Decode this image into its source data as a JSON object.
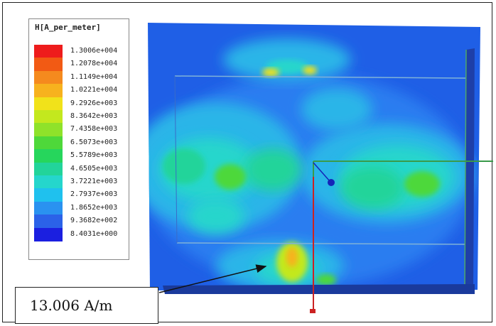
{
  "legend": {
    "title": "H[A_per_meter]",
    "entries": [
      {
        "label": "1.3006e+004",
        "color": "#ee1c1c"
      },
      {
        "label": "1.2078e+004",
        "color": "#f25a14"
      },
      {
        "label": "1.1149e+004",
        "color": "#f58a1e"
      },
      {
        "label": "1.0221e+004",
        "color": "#f7b21e"
      },
      {
        "label": "9.2926e+003",
        "color": "#f1e21a"
      },
      {
        "label": "8.3642e+003",
        "color": "#c3e81e"
      },
      {
        "label": "7.4358e+003",
        "color": "#8fe22a"
      },
      {
        "label": "6.5073e+003",
        "color": "#4ed83a"
      },
      {
        "label": "5.5789e+003",
        "color": "#26d65c"
      },
      {
        "label": "4.6505e+003",
        "color": "#22d49a"
      },
      {
        "label": "3.7221e+003",
        "color": "#25d6cc"
      },
      {
        "label": "2.7937e+003",
        "color": "#1fc1ee"
      },
      {
        "label": "1.8652e+003",
        "color": "#2a92f0"
      },
      {
        "label": "9.3682e+002",
        "color": "#2b62e8"
      },
      {
        "label": "8.4031e+000",
        "color": "#1b1fe0"
      }
    ]
  },
  "annotation": {
    "text": "13.006 A/m"
  },
  "colors": {
    "field_background": "#1f5fe6",
    "marker_line": "#cc2222",
    "marker_dot": "#1525b8",
    "guide_line": "#3a9a4a",
    "arrow": "#111111"
  }
}
